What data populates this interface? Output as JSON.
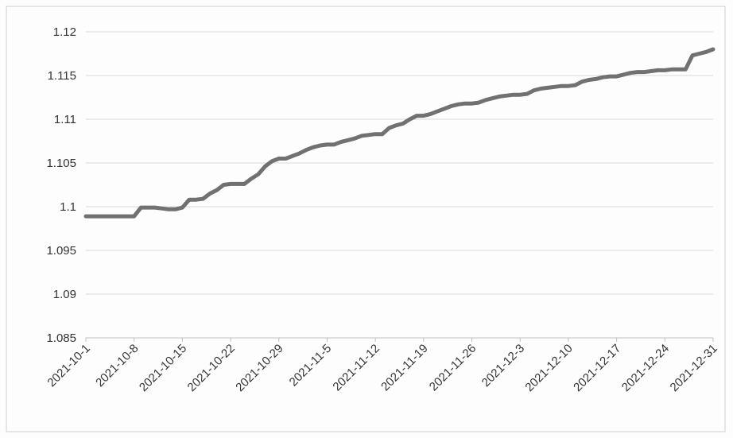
{
  "chart_data": {
    "type": "line",
    "title": "",
    "xlabel": "",
    "ylabel": "",
    "ylim": [
      1.085,
      1.12
    ],
    "y_ticks": [
      "1.085",
      "1.09",
      "1.095",
      "1.1",
      "1.105",
      "1.11",
      "1.115",
      "1.12"
    ],
    "x_tick_labels": [
      "2021-10-1",
      "2021-10-8",
      "2021-10-15",
      "2021-10-22",
      "2021-10-29",
      "2021-11-5",
      "2021-11-12",
      "2021-11-19",
      "2021-11-26",
      "2021-12-3",
      "2021-12-10",
      "2021-12-17",
      "2021-12-24",
      "2021-12-31"
    ],
    "grid": "horizontal",
    "legend": "none",
    "colors": {
      "line": "#6f726f",
      "grid": "#d9d9d9",
      "axis": "#bfbfbf"
    },
    "series": [
      {
        "x": [
          "2021-10-1",
          "2021-10-2",
          "2021-10-3",
          "2021-10-4",
          "2021-10-5",
          "2021-10-6",
          "2021-10-7",
          "2021-10-8",
          "2021-10-9",
          "2021-10-10",
          "2021-10-11",
          "2021-10-12",
          "2021-10-13",
          "2021-10-14",
          "2021-10-15",
          "2021-10-16",
          "2021-10-17",
          "2021-10-18",
          "2021-10-19",
          "2021-10-20",
          "2021-10-21",
          "2021-10-22",
          "2021-10-23",
          "2021-10-24",
          "2021-10-25",
          "2021-10-26",
          "2021-10-27",
          "2021-10-28",
          "2021-10-29",
          "2021-10-30",
          "2021-10-31",
          "2021-11-1",
          "2021-11-2",
          "2021-11-3",
          "2021-11-4",
          "2021-11-5",
          "2021-11-6",
          "2021-11-7",
          "2021-11-8",
          "2021-11-9",
          "2021-11-10",
          "2021-11-11",
          "2021-11-12",
          "2021-11-13",
          "2021-11-14",
          "2021-11-15",
          "2021-11-16",
          "2021-11-17",
          "2021-11-18",
          "2021-11-19",
          "2021-11-20",
          "2021-11-21",
          "2021-11-22",
          "2021-11-23",
          "2021-11-24",
          "2021-11-25",
          "2021-11-26",
          "2021-11-27",
          "2021-11-28",
          "2021-11-29",
          "2021-11-30",
          "2021-12-1",
          "2021-12-2",
          "2021-12-3",
          "2021-12-4",
          "2021-12-5",
          "2021-12-6",
          "2021-12-7",
          "2021-12-8",
          "2021-12-9",
          "2021-12-10",
          "2021-12-11",
          "2021-12-12",
          "2021-12-13",
          "2021-12-14",
          "2021-12-15",
          "2021-12-16",
          "2021-12-17",
          "2021-12-18",
          "2021-12-19",
          "2021-12-20",
          "2021-12-21",
          "2021-12-22",
          "2021-12-23",
          "2021-12-24",
          "2021-12-25",
          "2021-12-26",
          "2021-12-27",
          "2021-12-28",
          "2021-12-29",
          "2021-12-30",
          "2021-12-31"
        ],
        "values": [
          1.0989,
          1.0989,
          1.0989,
          1.0989,
          1.0989,
          1.0989,
          1.0989,
          1.0989,
          1.0999,
          1.0999,
          1.0999,
          1.0998,
          1.0997,
          1.0997,
          1.0999,
          1.1008,
          1.1008,
          1.1009,
          1.1015,
          1.1019,
          1.1025,
          1.1026,
          1.1026,
          1.1026,
          1.1032,
          1.1037,
          1.1046,
          1.1052,
          1.1055,
          1.1055,
          1.1058,
          1.1061,
          1.1065,
          1.1068,
          1.107,
          1.1071,
          1.1071,
          1.1074,
          1.1076,
          1.1078,
          1.1081,
          1.1082,
          1.1083,
          1.1083,
          1.109,
          1.1093,
          1.1095,
          1.11,
          1.1104,
          1.1104,
          1.1106,
          1.1109,
          1.1112,
          1.1115,
          1.1117,
          1.1118,
          1.1118,
          1.1119,
          1.1122,
          1.1124,
          1.1126,
          1.1127,
          1.1128,
          1.1128,
          1.1129,
          1.1133,
          1.1135,
          1.1136,
          1.1137,
          1.1138,
          1.1138,
          1.1139,
          1.1143,
          1.1145,
          1.1146,
          1.1148,
          1.1149,
          1.1149,
          1.1151,
          1.1153,
          1.1154,
          1.1154,
          1.1155,
          1.1156,
          1.1156,
          1.1157,
          1.1157,
          1.1157,
          1.1173,
          1.1175,
          1.1177,
          1.118
        ]
      }
    ]
  }
}
